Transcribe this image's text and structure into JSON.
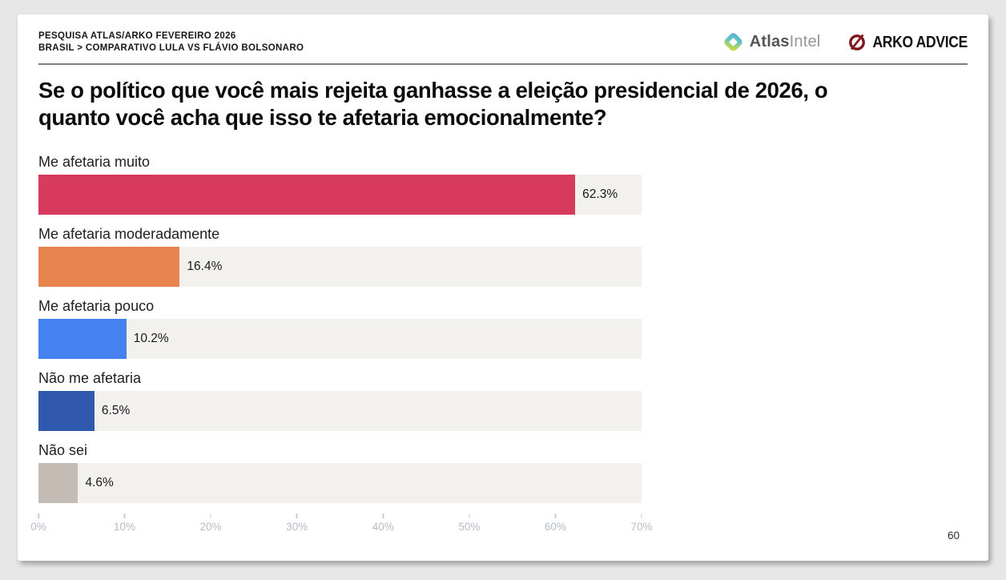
{
  "header": {
    "line1": "PESQUISA ATLAS/ARKO FEVEREIRO 2026",
    "line2": "BRASIL > COMPARATIVO LULA VS FLÁVIO BOLSONARO",
    "logos": {
      "atlas_bold": "Atlas",
      "atlas_light": "Intel",
      "atlas_icon": "diamond-gradient-icon",
      "arko_text": "ARKO ADVICE",
      "arko_icon": "circle-slash-icon"
    }
  },
  "title": "Se o político que você mais rejeita ganhasse a eleição presidencial de 2026, o quanto você acha que isso te afetaria emocionalmente?",
  "chart_data": {
    "type": "bar",
    "orientation": "horizontal",
    "categories": [
      "Me afetaria muito",
      "Me afetaria moderadamente",
      "Me afetaria pouco",
      "Não me afetaria",
      "Não sei"
    ],
    "values": [
      62.3,
      16.4,
      10.2,
      6.5,
      4.6
    ],
    "value_labels": [
      "62.3%",
      "16.4%",
      "10.2%",
      "6.5%",
      "4.6%"
    ],
    "colors": [
      "#d83a5e",
      "#e8854e",
      "#4681f0",
      "#3058ac",
      "#c4bcb4"
    ],
    "track_color": "#f2f1ee",
    "xmax": 70,
    "x_ticks": [
      "0%",
      "10%",
      "20%",
      "30%",
      "40%",
      "50%",
      "60%",
      "70%"
    ],
    "xlabel": "",
    "ylabel": "",
    "grid": false,
    "legend": false
  },
  "page_number": "60"
}
